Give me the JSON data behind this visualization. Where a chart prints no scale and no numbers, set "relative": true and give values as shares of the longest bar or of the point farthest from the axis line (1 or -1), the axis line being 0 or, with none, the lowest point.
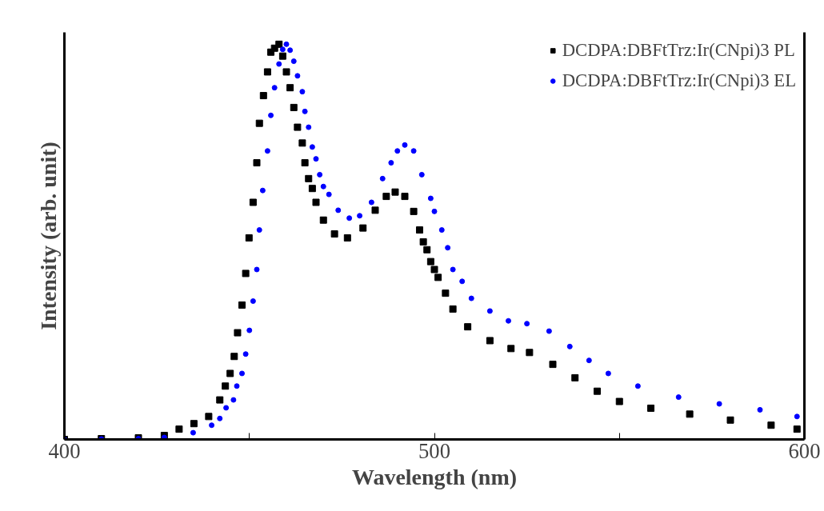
{
  "chart_data": {
    "type": "scatter",
    "xlabel": "Wavelength (nm)",
    "ylabel": "Intensity (arb. unit)",
    "relative": true,
    "xlim": [
      400,
      600
    ],
    "xticks": [
      400,
      {
        "value": 450,
        "label": null
      },
      500,
      {
        "value": 550,
        "label": null
      },
      600
    ],
    "legend": "top right",
    "grid": false,
    "series": [
      {
        "name": "DCDPA:DBFtTrz:Ir(CNpi)3 PL",
        "color": "#000000",
        "marker": "square",
        "x": [
          400,
          410,
          420,
          427,
          431,
          435,
          439,
          442,
          443.5,
          444.8,
          445.9,
          446.8,
          448,
          449,
          449.9,
          451,
          452,
          452.7,
          453.8,
          454.9,
          455.8,
          456.8,
          458,
          459,
          460,
          461,
          462,
          463,
          464.3,
          465,
          466,
          467,
          468,
          470,
          473,
          476.5,
          480.7,
          484,
          487,
          489.4,
          492,
          494.4,
          496,
          497,
          498,
          499,
          500,
          501,
          503,
          505,
          509,
          515,
          520.7,
          525.7,
          532,
          538,
          544,
          550,
          558.5,
          569,
          580,
          591,
          598
        ],
        "values": [
          0,
          0.002,
          0.004,
          0.01,
          0.026,
          0.04,
          0.058,
          0.1,
          0.135,
          0.167,
          0.21,
          0.27,
          0.34,
          0.42,
          0.51,
          0.6,
          0.7,
          0.8,
          0.87,
          0.93,
          0.98,
          0.99,
          1,
          0.97,
          0.93,
          0.89,
          0.84,
          0.79,
          0.75,
          0.7,
          0.66,
          0.635,
          0.6,
          0.555,
          0.52,
          0.51,
          0.535,
          0.58,
          0.615,
          0.626,
          0.615,
          0.577,
          0.53,
          0.5,
          0.48,
          0.45,
          0.43,
          0.41,
          0.37,
          0.33,
          0.285,
          0.25,
          0.23,
          0.22,
          0.19,
          0.156,
          0.122,
          0.096,
          0.079,
          0.064,
          0.049,
          0.036,
          0.026
        ]
      },
      {
        "name": "DCDPA:DBFtTrz:Ir(CNpi)3 EL",
        "color": "#0000ff",
        "marker": "circle",
        "x": [
          400,
          410,
          420,
          427,
          434.8,
          439.8,
          442,
          443.7,
          445.7,
          446.6,
          448,
          449,
          450,
          451,
          452,
          452.7,
          453.6,
          454.9,
          455.8,
          456.8,
          458,
          459,
          460,
          461,
          462,
          463,
          464.3,
          465,
          466,
          467,
          468,
          469,
          470,
          471.5,
          474,
          477,
          479.8,
          483,
          486,
          488.3,
          490,
          492,
          494.4,
          496.6,
          499,
          500,
          502,
          503.6,
          505,
          507.5,
          510,
          515,
          520,
          525,
          531,
          536.6,
          541.8,
          547,
          555,
          566,
          577,
          588,
          598
        ],
        "values": [
          0,
          0.001,
          0.002,
          0.005,
          0.017,
          0.036,
          0.053,
          0.08,
          0.1,
          0.135,
          0.167,
          0.216,
          0.276,
          0.35,
          0.43,
          0.53,
          0.63,
          0.73,
          0.82,
          0.89,
          0.95,
          0.987,
          1,
          0.985,
          0.957,
          0.92,
          0.88,
          0.83,
          0.79,
          0.74,
          0.71,
          0.67,
          0.64,
          0.62,
          0.58,
          0.56,
          0.566,
          0.6,
          0.66,
          0.7,
          0.73,
          0.745,
          0.73,
          0.67,
          0.61,
          0.577,
          0.53,
          0.485,
          0.43,
          0.4,
          0.357,
          0.325,
          0.3,
          0.293,
          0.274,
          0.235,
          0.2,
          0.167,
          0.135,
          0.107,
          0.09,
          0.075,
          0.058
        ]
      }
    ]
  }
}
